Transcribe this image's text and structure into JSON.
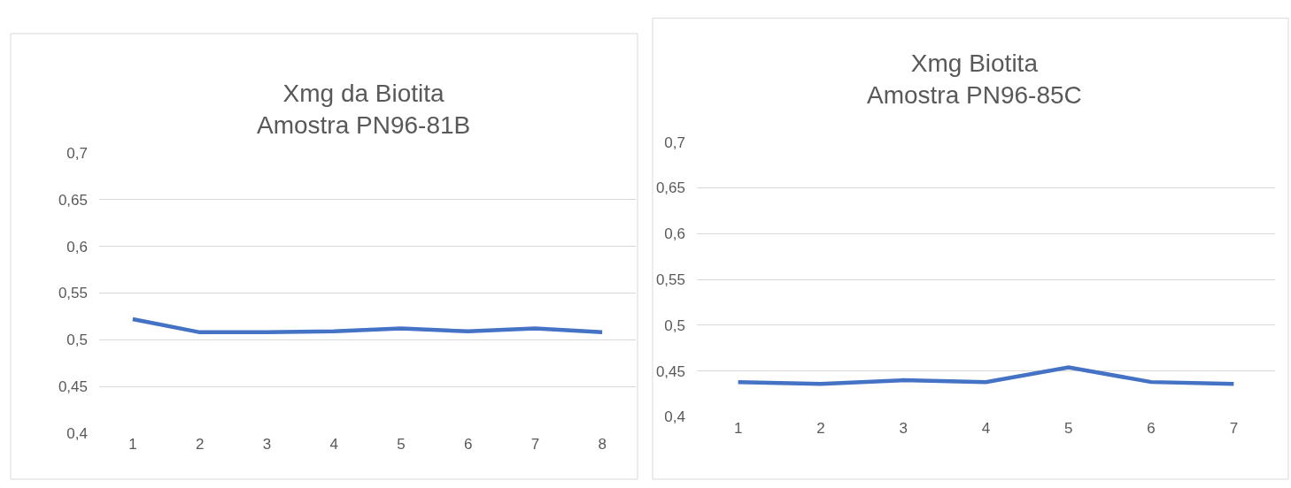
{
  "chart_data": [
    {
      "type": "line",
      "title": "Xmg da Biotita\nAmostra PN96-81B",
      "categories": [
        "1",
        "2",
        "3",
        "4",
        "5",
        "6",
        "7",
        "8"
      ],
      "series": [
        {
          "color": "#4472c4",
          "values": [
            0.522,
            0.508,
            0.508,
            0.509,
            0.512,
            0.509,
            0.512,
            0.508
          ]
        }
      ],
      "ylim": [
        0.4,
        0.7
      ],
      "yticks": [
        {
          "value": 0.4,
          "label": "0,4"
        },
        {
          "value": 0.45,
          "label": "0,45"
        },
        {
          "value": 0.5,
          "label": "0,5"
        },
        {
          "value": 0.55,
          "label": "0,55"
        },
        {
          "value": 0.6,
          "label": "0,6"
        },
        {
          "value": 0.65,
          "label": "0,65"
        },
        {
          "value": 0.7,
          "label": "0,7"
        }
      ],
      "grid": "y",
      "marker": "none",
      "line_style": "solid"
    },
    {
      "type": "line",
      "title": "Xmg Biotita\nAmostra PN96-85C",
      "categories": [
        "1",
        "2",
        "3",
        "4",
        "5",
        "6",
        "7"
      ],
      "series": [
        {
          "color": "#4472c4",
          "values": [
            0.438,
            0.436,
            0.44,
            0.438,
            0.454,
            0.438,
            0.436
          ]
        }
      ],
      "ylim": [
        0.4,
        0.7
      ],
      "yticks": [
        {
          "value": 0.4,
          "label": "0,4"
        },
        {
          "value": 0.45,
          "label": "0,45"
        },
        {
          "value": 0.5,
          "label": "0,5"
        },
        {
          "value": 0.55,
          "label": "0,55"
        },
        {
          "value": 0.6,
          "label": "0,6"
        },
        {
          "value": 0.65,
          "label": "0,65"
        },
        {
          "value": 0.7,
          "label": "0,7"
        }
      ],
      "grid": "y",
      "marker": "none",
      "line_style": "solid"
    }
  ]
}
